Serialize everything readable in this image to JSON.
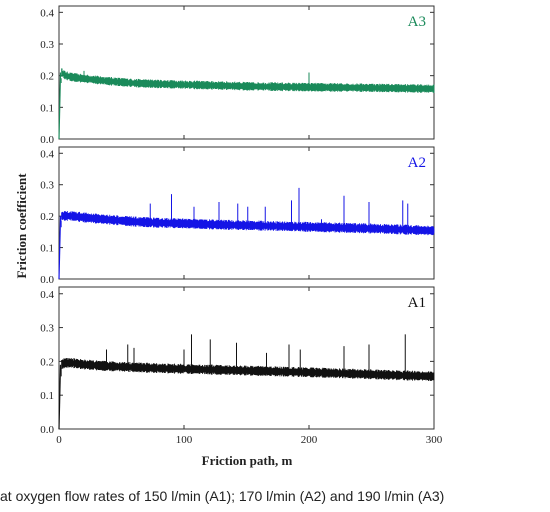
{
  "figure": {
    "xlabel": "Friction path, m",
    "ylabel": "Friction coefficient",
    "caption": "at oxygen flow rates of 150 l/min (A1); 170 l/min (A2) and 190 l/min (A3)"
  },
  "chart_data": [
    {
      "type": "line",
      "label": "A3",
      "color": "#1a8a5a",
      "xlim": [
        0,
        300
      ],
      "ylim": [
        0,
        0.42
      ],
      "xticks": [
        0,
        100,
        200,
        300
      ],
      "yticks": [
        0.0,
        0.1,
        0.2,
        0.3,
        0.4
      ],
      "ytick_labels": [
        "0.0",
        "0.1",
        "0.2",
        "0.3",
        "0.4"
      ],
      "x": [
        0,
        2,
        5,
        10,
        20,
        40,
        60,
        80,
        100,
        120,
        150,
        180,
        200,
        250,
        300
      ],
      "y": [
        0.0,
        0.21,
        0.2,
        0.195,
        0.19,
        0.182,
        0.176,
        0.173,
        0.171,
        0.169,
        0.166,
        0.164,
        0.163,
        0.161,
        0.158
      ],
      "noise": 0.012,
      "spikes": [
        [
          20,
          0.215
        ],
        [
          200,
          0.21
        ]
      ]
    },
    {
      "type": "line",
      "label": "A2",
      "color": "#1414e6",
      "xlim": [
        0,
        300
      ],
      "ylim": [
        0,
        0.42
      ],
      "xticks": [
        0,
        100,
        200,
        300
      ],
      "yticks": [
        0.0,
        0.1,
        0.2,
        0.3,
        0.4
      ],
      "ytick_labels": [
        "0.0",
        "0.1",
        "0.2",
        "0.3",
        "0.4"
      ],
      "x": [
        0,
        2,
        5,
        10,
        20,
        40,
        60,
        80,
        100,
        120,
        150,
        180,
        200,
        250,
        300
      ],
      "y": [
        0.0,
        0.2,
        0.2,
        0.2,
        0.195,
        0.188,
        0.182,
        0.178,
        0.176,
        0.173,
        0.17,
        0.167,
        0.165,
        0.16,
        0.153
      ],
      "noise": 0.014,
      "spikes": [
        [
          73,
          0.24
        ],
        [
          90,
          0.27
        ],
        [
          108,
          0.23
        ],
        [
          128,
          0.245
        ],
        [
          143,
          0.24
        ],
        [
          151,
          0.23
        ],
        [
          165,
          0.23
        ],
        [
          186,
          0.25
        ],
        [
          192,
          0.29
        ],
        [
          210,
          0.19
        ],
        [
          228,
          0.265
        ],
        [
          248,
          0.245
        ],
        [
          275,
          0.25
        ],
        [
          279,
          0.24
        ]
      ]
    },
    {
      "type": "line",
      "label": "A1",
      "color": "#111111",
      "xlim": [
        0,
        300
      ],
      "ylim": [
        0,
        0.42
      ],
      "xticks": [
        0,
        100,
        200,
        300
      ],
      "xtick_labels": [
        "0",
        "100",
        "200",
        "300"
      ],
      "yticks": [
        0.0,
        0.1,
        0.2,
        0.3,
        0.4
      ],
      "ytick_labels": [
        "0.0",
        "0.1",
        "0.2",
        "0.3",
        "0.4"
      ],
      "x": [
        0,
        2,
        5,
        10,
        20,
        40,
        60,
        80,
        100,
        120,
        150,
        180,
        200,
        250,
        300
      ],
      "y": [
        0.0,
        0.19,
        0.195,
        0.195,
        0.19,
        0.185,
        0.182,
        0.179,
        0.177,
        0.175,
        0.172,
        0.169,
        0.167,
        0.161,
        0.155
      ],
      "noise": 0.013,
      "spikes": [
        [
          38,
          0.235
        ],
        [
          55,
          0.25
        ],
        [
          60,
          0.24
        ],
        [
          100,
          0.235
        ],
        [
          106,
          0.28
        ],
        [
          121,
          0.265
        ],
        [
          142,
          0.255
        ],
        [
          166,
          0.225
        ],
        [
          184,
          0.25
        ],
        [
          193,
          0.235
        ],
        [
          228,
          0.245
        ],
        [
          248,
          0.25
        ],
        [
          277,
          0.28
        ]
      ]
    }
  ]
}
